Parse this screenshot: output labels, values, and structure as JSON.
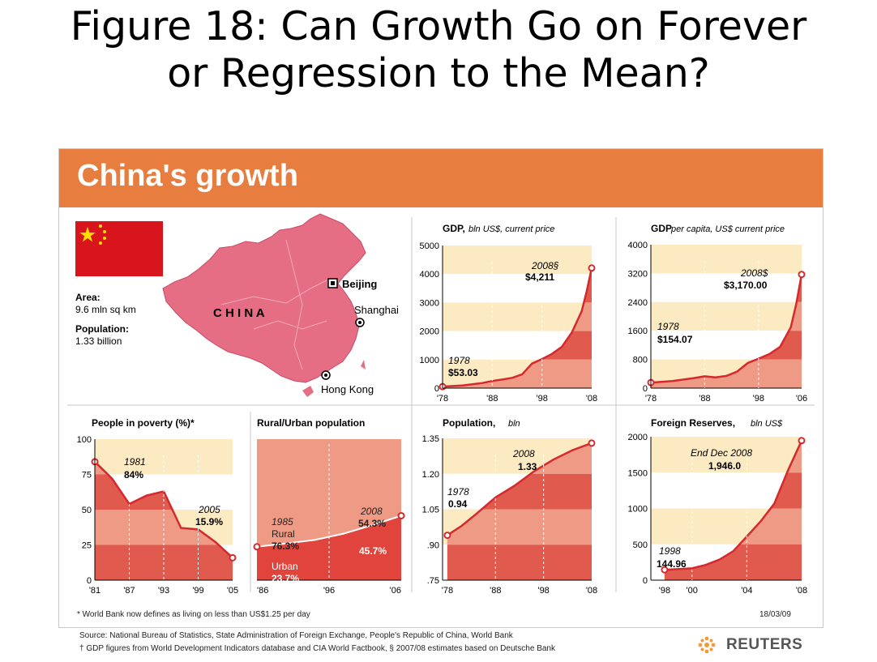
{
  "slide": {
    "title_line1": "Figure 18: Can Growth Go on Forever",
    "title_line2": "or Regression to the Mean?"
  },
  "infographic": {
    "title": "China's growth",
    "area_label": "Area:",
    "area_value": "9.6 mln sq km",
    "population_label": "Population:",
    "population_value": "1.33 billion",
    "country": "C H I N A",
    "cities": [
      "Beijing",
      "Shanghai",
      "Hong Kong"
    ],
    "footnote": "* World Bank now defines as living on less than US$1.25 per day",
    "date": "18/03/09"
  },
  "footer": {
    "source": "Source: National Bureau of Statistics, State Administration of Foreign Exchange, People's Republic of China, World Bank",
    "note": "† GDP figures from World Development Indicators database and CIA World Factbook, § 2007/08 estimates based on Deutsche Bank",
    "brand": "REUTERS"
  },
  "colors": {
    "banner": "#e77e3f",
    "band_light": "#fbeac2",
    "series_fill": "#e05a4e",
    "series_fill_light": "#ee9a84",
    "line": "#d42a2e",
    "flag": "#d8141d",
    "map": "#e56e84"
  },
  "chart_data": [
    {
      "id": "gdp",
      "type": "area",
      "title": "GDP,",
      "subtitle": "bln US$, current price",
      "x": [
        1978,
        1982,
        1986,
        1988,
        1990,
        1992,
        1994,
        1996,
        1998,
        2000,
        2002,
        2004,
        2006,
        2007,
        2008
      ],
      "values": [
        53.03,
        95,
        180,
        250,
        300,
        360,
        480,
        860,
        1020,
        1200,
        1450,
        1950,
        2700,
        3400,
        4211
      ],
      "xticks": [
        "'78",
        "'88",
        "'98",
        "'08"
      ],
      "yticks": [
        "0",
        "1000",
        "2000",
        "3000",
        "4000",
        "5000"
      ],
      "ylim": [
        0,
        5000
      ],
      "xlim": [
        1978,
        2008
      ],
      "annotations": [
        {
          "label": "1978",
          "value": "$53.03"
        },
        {
          "label": "2008§",
          "value": "$4,211"
        }
      ]
    },
    {
      "id": "gdp_per_capita",
      "type": "area",
      "title": "GDP",
      "subtitle": "per capita, US$ current price",
      "x": [
        1978,
        1982,
        1986,
        1988,
        1990,
        1992,
        1994,
        1996,
        1998,
        2000,
        2002,
        2004,
        2005,
        2006
      ],
      "values": [
        154.07,
        200,
        280,
        330,
        300,
        340,
        460,
        700,
        820,
        950,
        1150,
        1700,
        2350,
        3170
      ],
      "xticks": [
        "'78",
        "'88",
        "'98",
        "'06"
      ],
      "yticks": [
        "0",
        "800",
        "1600",
        "2400",
        "3200",
        "4000"
      ],
      "ylim": [
        0,
        4000
      ],
      "xlim": [
        1978,
        2006
      ],
      "annotations": [
        {
          "label": "1978",
          "value": "$154.07"
        },
        {
          "label": "2008$",
          "value": "$3,170.00"
        }
      ]
    },
    {
      "id": "poverty",
      "type": "area",
      "title": "People in poverty (%)*",
      "x": [
        1981,
        1984,
        1987,
        1990,
        1993,
        1996,
        1999,
        2002,
        2005
      ],
      "values": [
        84,
        72,
        54,
        60,
        63,
        37,
        36,
        27,
        15.9
      ],
      "xticks": [
        "'81",
        "'87",
        "'93",
        "'99",
        "'05"
      ],
      "yticks": [
        "0",
        "25",
        "50",
        "75",
        "100"
      ],
      "ylim": [
        0,
        100
      ],
      "xlim": [
        1981,
        2005
      ],
      "annotations": [
        {
          "label": "1981",
          "value": "84%"
        },
        {
          "label": "2005",
          "value": "15.9%"
        }
      ]
    },
    {
      "id": "rural_urban",
      "type": "area",
      "title": "Rural/Urban population",
      "x": [
        1986,
        1990,
        1994,
        1998,
        2002,
        2006
      ],
      "values": [
        23.7,
        26,
        28.5,
        33,
        39,
        45.7
      ],
      "xticks": [
        "'86",
        "'96",
        "'06"
      ],
      "xlim": [
        1986,
        2006
      ],
      "ylim": [
        0,
        100
      ],
      "annotations": [
        {
          "label": "1985",
          "value": "Rural"
        },
        {
          "label": "",
          "value": "76.3%"
        },
        {
          "label": "Urban",
          "value": "23.7%"
        },
        {
          "label": "2008",
          "value": "54.3%"
        },
        {
          "label": "",
          "value": "45.7%"
        }
      ]
    },
    {
      "id": "population",
      "type": "area",
      "title": "Population,",
      "subtitle": "bln",
      "x": [
        1978,
        1981,
        1984,
        1988,
        1992,
        1996,
        2000,
        2004,
        2008
      ],
      "values": [
        0.94,
        0.98,
        1.03,
        1.1,
        1.15,
        1.21,
        1.26,
        1.3,
        1.33
      ],
      "xticks": [
        "'78",
        "'88",
        "'98",
        "'08"
      ],
      "yticks": [
        ".75",
        ".90",
        "1.05",
        "1.20",
        "1.35"
      ],
      "ylim": [
        0.75,
        1.35
      ],
      "xlim": [
        1977,
        2008
      ],
      "annotations": [
        {
          "label": "1978",
          "value": "0.94"
        },
        {
          "label": "2008",
          "value": "1.33"
        }
      ]
    },
    {
      "id": "foreign_reserves",
      "type": "area",
      "title": "Foreign Reserves,",
      "subtitle": "bln US$",
      "x": [
        1998,
        2000,
        2001,
        2002,
        2003,
        2004,
        2005,
        2006,
        2007,
        2008
      ],
      "values": [
        144.96,
        165,
        212,
        286,
        403,
        609,
        818,
        1066,
        1528,
        1946
      ],
      "xticks": [
        "'98",
        "'00",
        "'04",
        "'08"
      ],
      "yticks": [
        "0",
        "500",
        "1000",
        "1500",
        "2000"
      ],
      "ylim": [
        0,
        2000
      ],
      "xlim": [
        1997,
        2008
      ],
      "annotations": [
        {
          "label": "1998",
          "value": "144.96"
        },
        {
          "label": "End Dec 2008",
          "value": "1,946.0"
        }
      ]
    }
  ]
}
